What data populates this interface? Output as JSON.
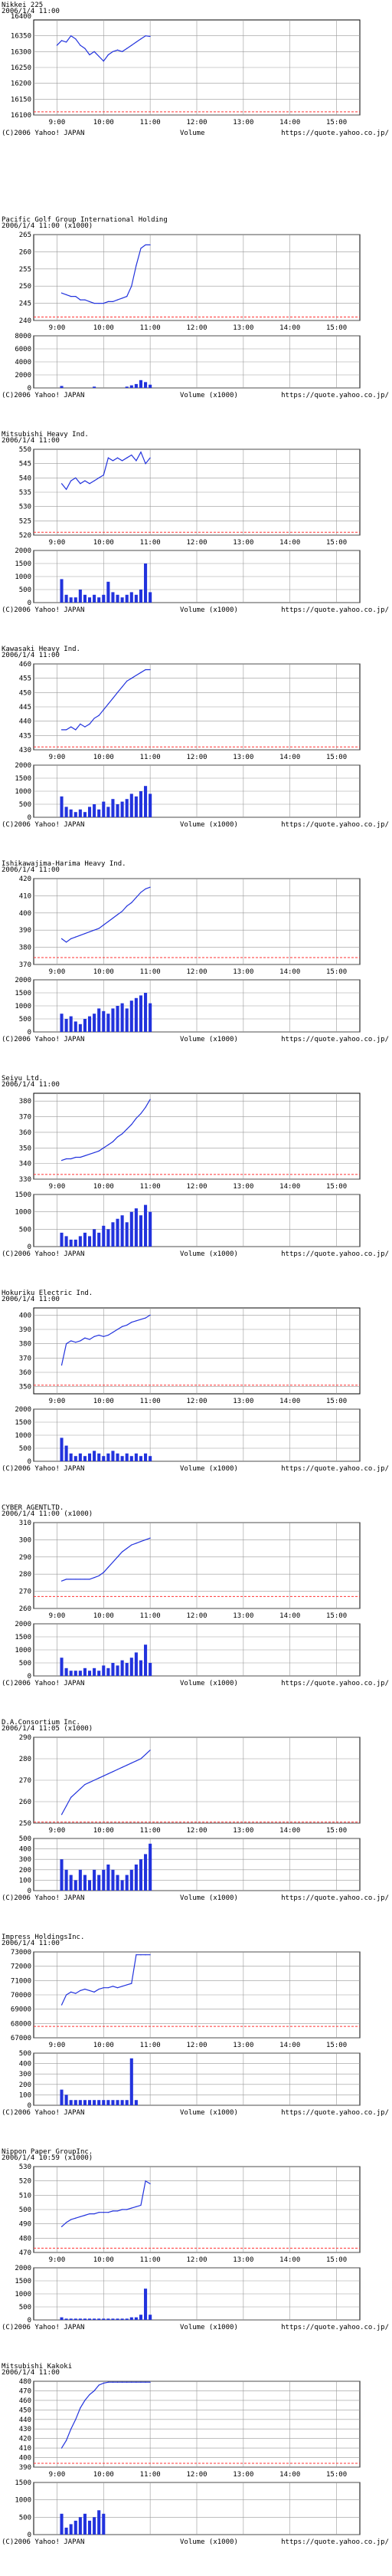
{
  "colors": {
    "line": "#2233dd",
    "volume": "#2233dd",
    "grid": "#999999",
    "ref": "#ff3333",
    "axis": "#000000"
  },
  "footer": {
    "copyright": "(C)2006 Yahoo! JAPAN",
    "volume_label": "Volume",
    "volume_unit_label": "Volume (x1000)",
    "url": "https://quote.yahoo.co.jp/"
  },
  "time_axis": [
    "9:00",
    "10:00",
    "11:00",
    "12:00",
    "13:00",
    "14:00",
    "15:00"
  ],
  "chart_data": [
    {
      "type": "line",
      "name": "Nikkei 225",
      "header_lines": [
        "Nikkei 225",
        "2006/1/4 11:00"
      ],
      "y_ticks": [
        16350,
        16300,
        16250,
        16200,
        16150,
        16100
      ],
      "top_label": "16400",
      "ylim": [
        16100,
        16400
      ],
      "ref": 16110,
      "x": [
        0,
        0.1,
        0.2,
        0.3,
        0.4,
        0.5,
        0.6,
        0.7,
        0.8,
        0.9,
        1.0,
        1.1,
        1.2,
        1.3,
        1.4,
        1.5,
        1.6,
        1.7,
        1.8,
        1.9,
        2.0
      ],
      "y": [
        16320,
        16335,
        16330,
        16350,
        16340,
        16320,
        16310,
        16290,
        16300,
        16285,
        16270,
        16290,
        16300,
        16305,
        16300,
        16310,
        16320,
        16330,
        16340,
        16350,
        16348
      ],
      "volume": null
    },
    {
      "type": "line",
      "name": "Pacific Golf Group International Holding",
      "header_lines": [
        "Pacific Golf Group International Holding",
        "2006/1/4 11:00 (x1000)"
      ],
      "y_ticks": [
        265,
        260,
        255,
        250,
        245,
        240
      ],
      "ylim": [
        240,
        265
      ],
      "ref": 241,
      "x": [
        0.1,
        0.2,
        0.3,
        0.4,
        0.5,
        0.6,
        0.7,
        0.8,
        0.9,
        1.0,
        1.1,
        1.2,
        1.3,
        1.4,
        1.5,
        1.6,
        1.7,
        1.8,
        1.9,
        2.0
      ],
      "y": [
        248,
        247.5,
        247,
        247,
        246,
        246,
        245.5,
        245,
        245,
        245,
        245.5,
        245.5,
        246,
        246.5,
        247,
        250,
        256,
        261,
        262,
        262
      ],
      "vol_ticks": [
        8000,
        6000,
        4000,
        2000,
        0
      ],
      "vol_max": 8000,
      "volume": [
        300,
        0,
        0,
        0,
        0,
        0,
        0,
        200,
        0,
        0,
        0,
        0,
        0,
        0,
        200,
        400,
        600,
        1200,
        900,
        500
      ]
    },
    {
      "type": "line",
      "name": "Mitsubishi Heavy Ind.",
      "header_lines": [
        "Mitsubishi Heavy Ind.",
        "2006/1/4 11:00"
      ],
      "y_ticks": [
        550,
        545,
        540,
        535,
        530,
        525,
        520
      ],
      "ylim": [
        520,
        550
      ],
      "ref": 521,
      "x": [
        0.1,
        0.2,
        0.3,
        0.4,
        0.5,
        0.6,
        0.7,
        0.8,
        0.9,
        1.0,
        1.1,
        1.2,
        1.3,
        1.4,
        1.5,
        1.6,
        1.7,
        1.8,
        1.9,
        2.0
      ],
      "y": [
        538,
        536,
        539,
        540,
        538,
        539,
        538,
        539,
        540,
        541,
        547,
        546,
        547,
        546,
        547,
        548,
        546,
        549,
        545,
        547
      ],
      "vol_ticks": [
        2000,
        1500,
        1000,
        500,
        0
      ],
      "vol_max": 2000,
      "volume": [
        900,
        300,
        200,
        200,
        500,
        300,
        200,
        300,
        200,
        300,
        800,
        400,
        300,
        200,
        300,
        400,
        300,
        500,
        1500,
        400
      ]
    },
    {
      "type": "line",
      "name": "Kawasaki Heavy Ind.",
      "header_lines": [
        "Kawasaki Heavy Ind.",
        "2006/1/4 11:00"
      ],
      "y_ticks": [
        460,
        455,
        450,
        445,
        440,
        435,
        430
      ],
      "ylim": [
        430,
        460
      ],
      "ref": 431,
      "x": [
        0.1,
        0.2,
        0.3,
        0.4,
        0.5,
        0.6,
        0.7,
        0.8,
        0.9,
        1.0,
        1.1,
        1.2,
        1.3,
        1.4,
        1.5,
        1.6,
        1.7,
        1.8,
        1.9,
        2.0
      ],
      "y": [
        437,
        437,
        438,
        437,
        439,
        438,
        439,
        441,
        442,
        444,
        446,
        448,
        450,
        452,
        454,
        455,
        456,
        457,
        458,
        458
      ],
      "vol_ticks": [
        2000,
        1500,
        1000,
        500,
        0
      ],
      "vol_max": 2000,
      "volume": [
        800,
        400,
        300,
        200,
        300,
        200,
        400,
        500,
        300,
        600,
        400,
        700,
        500,
        600,
        700,
        900,
        800,
        1000,
        1200,
        900
      ]
    },
    {
      "type": "line",
      "name": "Ishikawajima-Harima Heavy Ind.",
      "header_lines": [
        "Ishikawajima-Harima Heavy Ind.",
        "2006/1/4 11:00"
      ],
      "y_ticks": [
        420,
        410,
        400,
        390,
        380,
        370
      ],
      "ylim": [
        370,
        420
      ],
      "ref": 374,
      "x": [
        0.1,
        0.2,
        0.3,
        0.4,
        0.5,
        0.6,
        0.7,
        0.8,
        0.9,
        1.0,
        1.1,
        1.2,
        1.3,
        1.4,
        1.5,
        1.6,
        1.7,
        1.8,
        1.9,
        2.0
      ],
      "y": [
        385,
        383,
        385,
        386,
        387,
        388,
        389,
        390,
        391,
        393,
        395,
        397,
        399,
        401,
        404,
        406,
        409,
        412,
        414,
        415
      ],
      "vol_ticks": [
        2000,
        1500,
        1000,
        500,
        0
      ],
      "vol_max": 2000,
      "volume": [
        700,
        500,
        600,
        400,
        300,
        500,
        600,
        700,
        900,
        800,
        700,
        900,
        1000,
        1100,
        900,
        1200,
        1300,
        1400,
        1500,
        1100
      ]
    },
    {
      "type": "line",
      "name": "Seiyu Ltd.",
      "header_lines": [
        "Seiyu Ltd.",
        "2006/1/4 11:00"
      ],
      "y_ticks": [
        380,
        370,
        360,
        350,
        340,
        330
      ],
      "ylim": [
        330,
        385
      ],
      "ref": 333,
      "x": [
        0.1,
        0.2,
        0.3,
        0.4,
        0.5,
        0.6,
        0.7,
        0.8,
        0.9,
        1.0,
        1.1,
        1.2,
        1.3,
        1.4,
        1.5,
        1.6,
        1.7,
        1.8,
        1.9,
        2.0
      ],
      "y": [
        342,
        343,
        343,
        344,
        344,
        345,
        346,
        347,
        348,
        350,
        352,
        354,
        357,
        359,
        362,
        365,
        369,
        372,
        376,
        381
      ],
      "vol_ticks": [
        1500,
        1000,
        500,
        0
      ],
      "vol_max": 1500,
      "volume": [
        400,
        300,
        200,
        200,
        300,
        400,
        300,
        500,
        400,
        600,
        500,
        700,
        800,
        900,
        700,
        1000,
        1100,
        900,
        1200,
        1000
      ]
    },
    {
      "type": "line",
      "name": "Hokuriku Electric Ind.",
      "header_lines": [
        "Hokuriku Electric Ind.",
        "2006/1/4 11:00"
      ],
      "y_ticks": [
        400,
        390,
        380,
        370,
        360,
        350
      ],
      "ylim": [
        345,
        405
      ],
      "ref": 351,
      "x": [
        0.1,
        0.2,
        0.3,
        0.4,
        0.5,
        0.6,
        0.7,
        0.8,
        0.9,
        1.0,
        1.1,
        1.2,
        1.3,
        1.4,
        1.5,
        1.6,
        1.7,
        1.8,
        1.9,
        2.0
      ],
      "y": [
        365,
        380,
        382,
        381,
        382,
        384,
        383,
        385,
        386,
        385,
        386,
        388,
        390,
        392,
        393,
        395,
        396,
        397,
        398,
        400
      ],
      "vol_ticks": [
        2000,
        1500,
        1000,
        500,
        0
      ],
      "vol_max": 2000,
      "volume": [
        900,
        600,
        300,
        200,
        300,
        200,
        300,
        400,
        300,
        200,
        300,
        400,
        300,
        200,
        300,
        200,
        300,
        200,
        300,
        200
      ]
    },
    {
      "type": "line",
      "name": "CYBER AGENT LTD.",
      "header_lines": [
        "CYBER AGENTLTD.",
        "2006/1/4 11:00 (x1000)"
      ],
      "y_ticks": [
        310,
        300,
        290,
        280,
        270,
        260
      ],
      "ylim": [
        260,
        310
      ],
      "ref": 267,
      "x": [
        0.1,
        0.2,
        0.3,
        0.4,
        0.5,
        0.6,
        0.7,
        0.8,
        0.9,
        1.0,
        1.1,
        1.2,
        1.3,
        1.4,
        1.5,
        1.6,
        1.7,
        1.8,
        1.9,
        2.0
      ],
      "y": [
        276,
        277,
        277,
        277,
        277,
        277,
        277,
        278,
        279,
        281,
        284,
        287,
        290,
        293,
        295,
        297,
        298,
        299,
        300,
        301
      ],
      "vol_ticks": [
        2000,
        1500,
        1000,
        500,
        0
      ],
      "vol_max": 2000,
      "volume": [
        700,
        300,
        200,
        200,
        200,
        300,
        200,
        300,
        200,
        400,
        300,
        500,
        400,
        600,
        500,
        700,
        900,
        600,
        1200,
        500
      ]
    },
    {
      "type": "line",
      "name": "D.A.Consortium Inc.",
      "header_lines": [
        "D.A.Consortium Inc.",
        "2006/1/4 11:05 (x1000)"
      ],
      "y_ticks": [
        290,
        280,
        270,
        260,
        250
      ],
      "ylim": [
        250,
        290
      ],
      "ref": 250.5,
      "x": [
        0.1,
        0.2,
        0.3,
        0.4,
        0.5,
        0.6,
        0.7,
        0.8,
        0.9,
        1.0,
        1.1,
        1.2,
        1.3,
        1.4,
        1.5,
        1.6,
        1.7,
        1.8,
        1.9,
        2.0
      ],
      "y": [
        254,
        258,
        262,
        264,
        266,
        268,
        269,
        270,
        271,
        272,
        273,
        274,
        275,
        276,
        277,
        278,
        279,
        280,
        282,
        284
      ],
      "vol_ticks": [
        500,
        400,
        300,
        200,
        100,
        0
      ],
      "vol_max": 500,
      "volume": [
        300,
        200,
        150,
        100,
        200,
        150,
        100,
        200,
        150,
        200,
        250,
        200,
        150,
        100,
        150,
        200,
        250,
        300,
        350,
        450
      ]
    },
    {
      "type": "line",
      "name": "Impress Holdings Inc.",
      "header_lines": [
        "Impress HoldingsInc.",
        "2006/1/4 11:00"
      ],
      "y_ticks": [
        73000,
        72000,
        71000,
        70000,
        69000,
        68000,
        67000
      ],
      "ylim": [
        67000,
        73000
      ],
      "ref": 67800,
      "x": [
        0.1,
        0.2,
        0.3,
        0.4,
        0.5,
        0.6,
        0.7,
        0.8,
        0.9,
        1.0,
        1.1,
        1.2,
        1.3,
        1.4,
        1.5,
        1.6,
        1.7,
        1.8,
        1.9,
        2.0
      ],
      "y": [
        69300,
        70000,
        70200,
        70100,
        70300,
        70400,
        70300,
        70200,
        70400,
        70500,
        70500,
        70600,
        70500,
        70600,
        70700,
        70800,
        72800,
        72800,
        72800,
        72800
      ],
      "vol_ticks": [
        500,
        400,
        300,
        200,
        100,
        0
      ],
      "vol_max": 500,
      "volume": [
        150,
        100,
        50,
        50,
        50,
        50,
        50,
        50,
        50,
        50,
        50,
        50,
        50,
        50,
        50,
        450,
        50,
        0,
        0,
        0
      ]
    },
    {
      "type": "line",
      "name": "Nippon Paper Group Inc.",
      "header_lines": [
        "Nippon Paper GroupInc.",
        "2006/1/4 10:59 (x1000)"
      ],
      "y_ticks": [
        530,
        520,
        510,
        500,
        490,
        480,
        470
      ],
      "ylim": [
        470,
        530
      ],
      "ref": 473,
      "x": [
        0.1,
        0.2,
        0.3,
        0.4,
        0.5,
        0.6,
        0.7,
        0.8,
        0.9,
        1.0,
        1.1,
        1.2,
        1.3,
        1.4,
        1.5,
        1.6,
        1.7,
        1.8,
        1.9,
        2.0
      ],
      "y": [
        488,
        491,
        493,
        494,
        495,
        496,
        497,
        497,
        498,
        498,
        498,
        499,
        499,
        500,
        500,
        501,
        502,
        503,
        520,
        518
      ],
      "vol_ticks": [
        2000,
        1500,
        1000,
        500,
        0
      ],
      "vol_max": 2000,
      "volume": [
        100,
        50,
        50,
        50,
        50,
        50,
        50,
        50,
        50,
        50,
        50,
        50,
        50,
        50,
        50,
        100,
        100,
        200,
        1200,
        200
      ]
    },
    {
      "type": "line",
      "name": "Mitsubishi Kakoki",
      "header_lines": [
        "Mitsubishi Kakoki",
        "2006/1/4 11:00"
      ],
      "y_ticks": [
        480,
        470,
        460,
        450,
        440,
        430,
        420,
        410,
        400,
        390
      ],
      "ylim": [
        390,
        480
      ],
      "ref": 394,
      "x": [
        0.1,
        0.2,
        0.3,
        0.4,
        0.5,
        0.6,
        0.7,
        0.8,
        0.9,
        1.0,
        1.1,
        1.2,
        1.3,
        1.4,
        1.5,
        1.6,
        1.7,
        1.8,
        1.9,
        2.0
      ],
      "y": [
        410,
        418,
        430,
        440,
        452,
        460,
        466,
        470,
        476,
        478,
        479,
        479,
        479,
        479,
        479,
        479,
        479,
        479,
        479,
        479
      ],
      "vol_ticks": [
        1500,
        1000,
        500,
        0
      ],
      "vol_max": 1500,
      "volume": [
        600,
        200,
        300,
        400,
        500,
        600,
        400,
        500,
        700,
        600,
        0,
        0,
        0,
        0,
        0,
        0,
        0,
        0,
        0,
        0
      ]
    }
  ]
}
